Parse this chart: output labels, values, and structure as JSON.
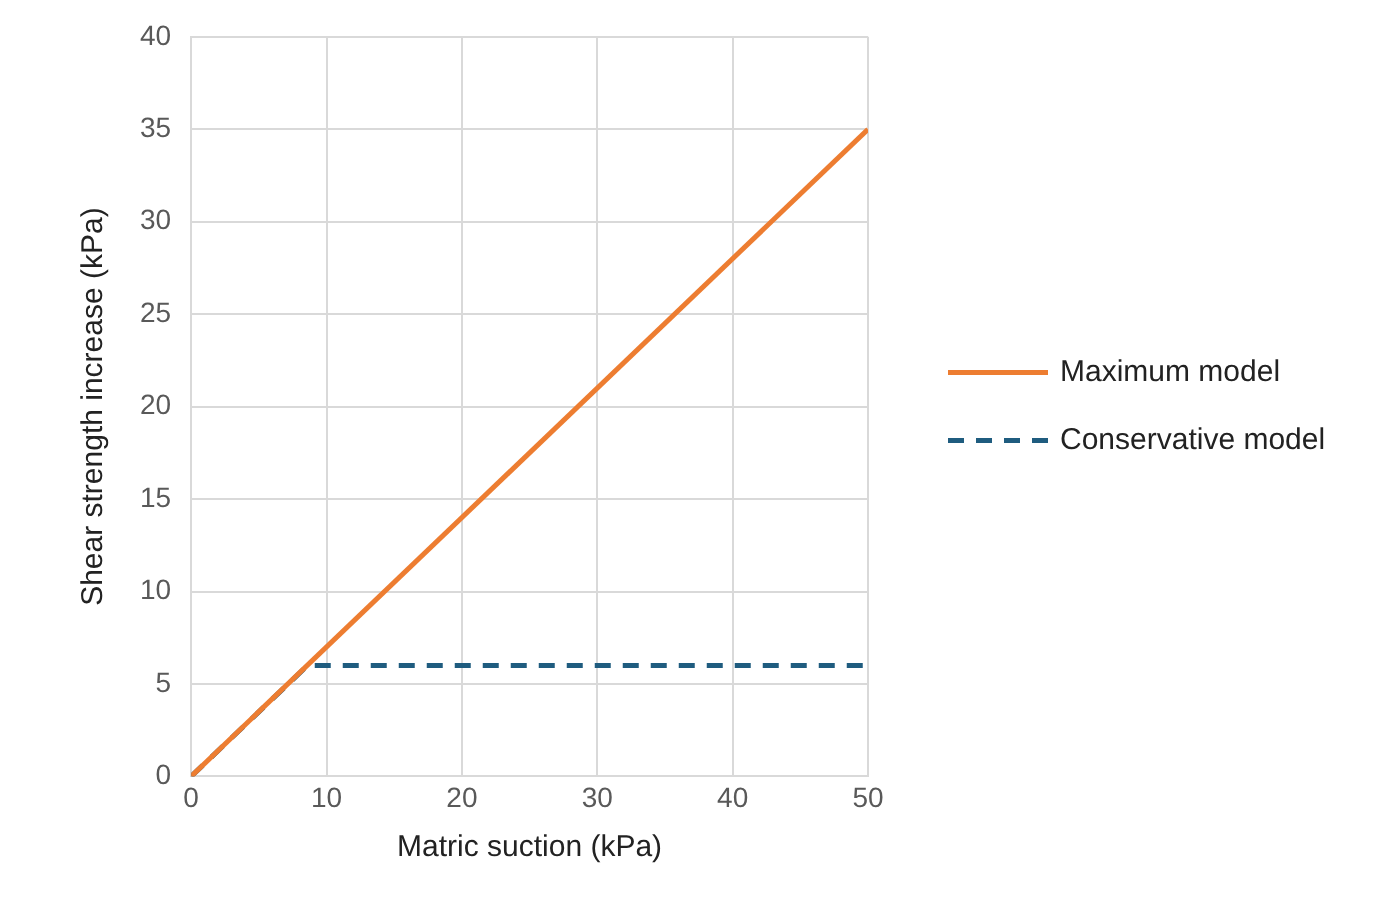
{
  "chart_data": {
    "type": "line",
    "xlabel": "Matric suction (kPa)",
    "ylabel": "Shear strength increase (kPa)",
    "xlim": [
      0,
      50
    ],
    "xticks": [
      0,
      10,
      20,
      30,
      40,
      50
    ],
    "ylim": [
      0,
      40
    ],
    "yticks": [
      0,
      5,
      10,
      15,
      20,
      25,
      30,
      35,
      40
    ],
    "grid": true,
    "legend": "right",
    "marker": "none",
    "series": [
      {
        "name": "Maximum model",
        "color": "#ed7d31",
        "x": [
          0,
          50
        ],
        "values": [
          0,
          35
        ],
        "line_style": "solid"
      },
      {
        "name": "Conservative model",
        "color": "#1f5c7f",
        "x": [
          0,
          8.6,
          50
        ],
        "values": [
          0,
          6,
          6
        ],
        "line_style": "dashed"
      }
    ]
  }
}
